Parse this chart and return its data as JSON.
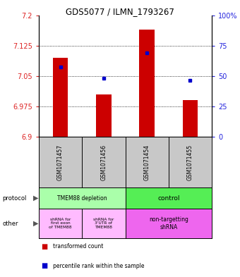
{
  "title": "GDS5077 / ILMN_1793267",
  "categories": [
    "GSM1071457",
    "GSM1071456",
    "GSM1071454",
    "GSM1071455"
  ],
  "bar_tops": [
    7.095,
    7.005,
    7.165,
    6.99
  ],
  "bar_bottom": 6.9,
  "blue_dots": [
    7.072,
    7.045,
    7.108,
    7.04
  ],
  "ylim": [
    6.9,
    7.2
  ],
  "y_ticks_left": [
    6.9,
    6.975,
    7.05,
    7.125,
    7.2
  ],
  "y_ticks_right": [
    0,
    25,
    50,
    75,
    100
  ],
  "bar_color": "#cc0000",
  "dot_color": "#0000cc",
  "protocol_labels": [
    "TMEM88 depletion",
    "control"
  ],
  "protocol_colors": [
    "#aaffaa",
    "#55ee55"
  ],
  "other_labels": [
    "shRNA for\nfirst exon\nof TMEM88",
    "shRNA for\n3'UTR of\nTMEM88",
    "non-targetting\nshRNA"
  ],
  "other_colors_left": "#ffbbff",
  "other_colors_right": "#ee66ee",
  "sample_bg": "#c8c8c8",
  "legend_items": [
    "transformed count",
    "percentile rank within the sample"
  ],
  "legend_colors": [
    "#cc0000",
    "#0000cc"
  ],
  "tick_color_left": "#dd2222",
  "tick_color_right": "#2222dd"
}
